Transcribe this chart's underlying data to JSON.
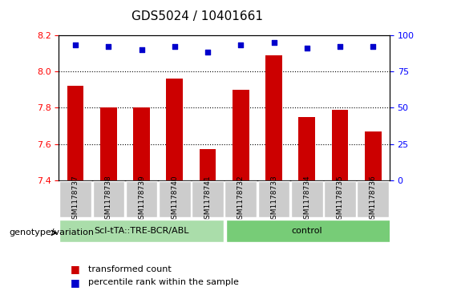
{
  "title": "GDS5024 / 10401661",
  "samples": [
    "GSM1178737",
    "GSM1178738",
    "GSM1178739",
    "GSM1178740",
    "GSM1178741",
    "GSM1178732",
    "GSM1178733",
    "GSM1178734",
    "GSM1178735",
    "GSM1178736"
  ],
  "bar_values": [
    7.92,
    7.8,
    7.8,
    7.96,
    7.57,
    7.9,
    8.09,
    7.75,
    7.79,
    7.67
  ],
  "percentile_values": [
    93,
    92,
    90,
    92,
    88,
    93,
    95,
    91,
    92,
    92
  ],
  "bar_color": "#cc0000",
  "dot_color": "#0000cc",
  "ymin": 7.4,
  "ymax": 8.2,
  "yticks": [
    7.4,
    7.6,
    7.8,
    8.0,
    8.2
  ],
  "right_yticks": [
    0,
    25,
    50,
    75,
    100
  ],
  "gridlines": [
    7.6,
    7.8,
    8.0
  ],
  "group1_label": "Scl-tTA::TRE-BCR/ABL",
  "group1_count": 5,
  "group2_label": "control",
  "group2_count": 5,
  "group_label_prefix": "genotype/variation",
  "legend_bar_label": "transformed count",
  "legend_dot_label": "percentile rank within the sample",
  "group1_color": "#aaddaa",
  "group2_color": "#77cc77",
  "tick_bg_color": "#cccccc",
  "bar_base": 7.4
}
